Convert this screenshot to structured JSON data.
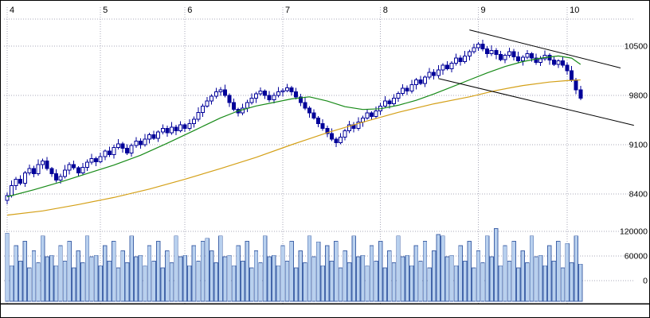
{
  "chart_data": {
    "type": "candlestick",
    "title": "",
    "x_axis": {
      "labels": [
        "4",
        "5",
        "6",
        "7",
        "8",
        "9",
        "10"
      ],
      "month_start_days": [
        0,
        21,
        40,
        62,
        84,
        106,
        126
      ],
      "total_days": 130
    },
    "price_axis": {
      "side": "right",
      "ticks": [
        10500,
        9800,
        9100,
        8400
      ]
    },
    "volume_axis": {
      "side": "right",
      "ticks": [
        120000,
        60000,
        0
      ]
    },
    "candles": [
      [
        8310,
        8420,
        8255,
        8380,
        92000
      ],
      [
        8380,
        8590,
        8350,
        8520,
        48000
      ],
      [
        8520,
        8640,
        8455,
        8610,
        75000
      ],
      [
        8610,
        8665,
        8525,
        8550,
        54000
      ],
      [
        8550,
        8725,
        8500,
        8700,
        81000
      ],
      [
        8700,
        8820,
        8665,
        8760,
        45000
      ],
      [
        8760,
        8800,
        8635,
        8690,
        68000
      ],
      [
        8690,
        8890,
        8660,
        8820,
        52000
      ],
      [
        8820,
        8900,
        8755,
        8870,
        88000
      ],
      [
        8870,
        8925,
        8735,
        8760,
        60000
      ],
      [
        8760,
        8785,
        8640,
        8690,
        62000
      ],
      [
        8690,
        8750,
        8565,
        8600,
        48000
      ],
      [
        8600,
        8690,
        8545,
        8650,
        75000
      ],
      [
        8650,
        8810,
        8620,
        8740,
        54000
      ],
      [
        8740,
        8850,
        8675,
        8820,
        81000
      ],
      [
        8820,
        8875,
        8745,
        8770,
        45000
      ],
      [
        8770,
        8795,
        8650,
        8700,
        68000
      ],
      [
        8700,
        8840,
        8665,
        8780,
        52000
      ],
      [
        8780,
        8890,
        8725,
        8850,
        88000
      ],
      [
        8850,
        8970,
        8820,
        8900,
        60000
      ],
      [
        8900,
        8930,
        8795,
        8860,
        62000
      ],
      [
        8860,
        8985,
        8835,
        8930,
        48000
      ],
      [
        8930,
        9035,
        8880,
        9010,
        75000
      ],
      [
        9010,
        9070,
        8925,
        8960,
        54000
      ],
      [
        8960,
        9100,
        8905,
        9060,
        81000
      ],
      [
        9060,
        9180,
        9030,
        9110,
        45000
      ],
      [
        9110,
        9140,
        8985,
        9050,
        68000
      ],
      [
        9050,
        9105,
        8955,
        8980,
        52000
      ],
      [
        8980,
        9115,
        8930,
        9090,
        88000
      ],
      [
        9090,
        9210,
        9055,
        9150,
        60000
      ],
      [
        9150,
        9190,
        9045,
        9100,
        62000
      ],
      [
        9100,
        9250,
        9070,
        9180,
        48000
      ],
      [
        9180,
        9270,
        9115,
        9240,
        75000
      ],
      [
        9240,
        9295,
        9165,
        9190,
        54000
      ],
      [
        9190,
        9305,
        9140,
        9280,
        81000
      ],
      [
        9280,
        9390,
        9245,
        9330,
        45000
      ],
      [
        9330,
        9370,
        9215,
        9270,
        68000
      ],
      [
        9270,
        9420,
        9240,
        9350,
        52000
      ],
      [
        9350,
        9380,
        9235,
        9300,
        88000
      ],
      [
        9300,
        9435,
        9275,
        9380,
        60000
      ],
      [
        9380,
        9405,
        9280,
        9330,
        62000
      ],
      [
        9330,
        9460,
        9295,
        9400,
        48000
      ],
      [
        9400,
        9500,
        9345,
        9460,
        75000
      ],
      [
        9460,
        9630,
        9430,
        9560,
        54000
      ],
      [
        9560,
        9680,
        9495,
        9650,
        81000
      ],
      [
        9650,
        9775,
        9625,
        9720,
        85000
      ],
      [
        9720,
        9815,
        9670,
        9790,
        68000
      ],
      [
        9790,
        9910,
        9755,
        9850,
        52000
      ],
      [
        9850,
        9920,
        9795,
        9880,
        88000
      ],
      [
        9880,
        9950,
        9770,
        9800,
        60000
      ],
      [
        9800,
        9830,
        9635,
        9700,
        62000
      ],
      [
        9700,
        9755,
        9575,
        9600,
        48000
      ],
      [
        9600,
        9625,
        9500,
        9550,
        75000
      ],
      [
        9550,
        9680,
        9515,
        9620,
        54000
      ],
      [
        9620,
        9740,
        9565,
        9700,
        81000
      ],
      [
        9700,
        9830,
        9670,
        9760,
        45000
      ],
      [
        9760,
        9850,
        9695,
        9820,
        68000
      ],
      [
        9820,
        9915,
        9795,
        9860,
        52000
      ],
      [
        9860,
        9885,
        9750,
        9800,
        88000
      ],
      [
        9800,
        9860,
        9705,
        9740,
        60000
      ],
      [
        9740,
        9840,
        9685,
        9800,
        62000
      ],
      [
        9800,
        9920,
        9770,
        9850,
        48000
      ],
      [
        9850,
        9900,
        9785,
        9870,
        75000
      ],
      [
        9870,
        9965,
        9845,
        9910,
        54000
      ],
      [
        9910,
        9935,
        9800,
        9850,
        81000
      ],
      [
        9850,
        9910,
        9745,
        9780,
        45000
      ],
      [
        9780,
        9820,
        9645,
        9700,
        68000
      ],
      [
        9700,
        9770,
        9590,
        9620,
        52000
      ],
      [
        9620,
        9650,
        9485,
        9550,
        88000
      ],
      [
        9550,
        9605,
        9455,
        9480,
        60000
      ],
      [
        9480,
        9505,
        9350,
        9400,
        80000
      ],
      [
        9400,
        9460,
        9295,
        9330,
        48000
      ],
      [
        9330,
        9370,
        9205,
        9260,
        75000
      ],
      [
        9260,
        9330,
        9150,
        9180,
        54000
      ],
      [
        9180,
        9210,
        9065,
        9130,
        81000
      ],
      [
        9130,
        9265,
        9105,
        9210,
        45000
      ],
      [
        9210,
        9325,
        9160,
        9300,
        68000
      ],
      [
        9300,
        9440,
        9265,
        9380,
        52000
      ],
      [
        9380,
        9420,
        9275,
        9330,
        88000
      ],
      [
        9330,
        9490,
        9300,
        9420,
        60000
      ],
      [
        9420,
        9510,
        9355,
        9480,
        62000
      ],
      [
        9480,
        9605,
        9455,
        9550,
        48000
      ],
      [
        9550,
        9575,
        9450,
        9500,
        75000
      ],
      [
        9500,
        9640,
        9465,
        9580,
        54000
      ],
      [
        9580,
        9690,
        9525,
        9650,
        81000
      ],
      [
        9650,
        9790,
        9620,
        9720,
        45000
      ],
      [
        9720,
        9750,
        9615,
        9680,
        68000
      ],
      [
        9680,
        9815,
        9655,
        9760,
        52000
      ],
      [
        9760,
        9855,
        9710,
        9830,
        88000
      ],
      [
        9830,
        9960,
        9795,
        9900,
        60000
      ],
      [
        9900,
        9940,
        9805,
        9860,
        62000
      ],
      [
        9860,
        10020,
        9830,
        9950,
        48000
      ],
      [
        9950,
        10050,
        9885,
        10020,
        75000
      ],
      [
        10020,
        10075,
        9945,
        9970,
        54000
      ],
      [
        9970,
        10085,
        9920,
        10060,
        81000
      ],
      [
        10060,
        10190,
        10025,
        10130,
        45000
      ],
      [
        10130,
        10170,
        10025,
        10080,
        68000
      ],
      [
        10080,
        10230,
        10050,
        10160,
        90000
      ],
      [
        10160,
        10260,
        10095,
        10230,
        88000
      ],
      [
        10230,
        10285,
        10155,
        10180,
        60000
      ],
      [
        10180,
        10285,
        10130,
        10260,
        62000
      ],
      [
        10260,
        10390,
        10225,
        10330,
        48000
      ],
      [
        10330,
        10370,
        10225,
        10280,
        75000
      ],
      [
        10280,
        10430,
        10250,
        10360,
        54000
      ],
      [
        10360,
        10450,
        10295,
        10420,
        81000
      ],
      [
        10420,
        10535,
        10395,
        10480,
        45000
      ],
      [
        10480,
        10555,
        10430,
        10530,
        68000
      ],
      [
        10530,
        10590,
        10425,
        10460,
        52000
      ],
      [
        10460,
        10500,
        10335,
        10390,
        88000
      ],
      [
        10390,
        10510,
        10360,
        10440,
        60000
      ],
      [
        10440,
        10470,
        10315,
        10380,
        98000
      ],
      [
        10380,
        10435,
        10285,
        10310,
        48000
      ],
      [
        10310,
        10395,
        10260,
        10370,
        75000
      ],
      [
        10370,
        10480,
        10335,
        10420,
        54000
      ],
      [
        10420,
        10460,
        10295,
        10350,
        81000
      ],
      [
        10350,
        10420,
        10260,
        10290,
        45000
      ],
      [
        10290,
        10370,
        10225,
        10340,
        68000
      ],
      [
        10340,
        10445,
        10315,
        10390,
        52000
      ],
      [
        10390,
        10415,
        10280,
        10330,
        88000
      ],
      [
        10330,
        10390,
        10235,
        10270,
        60000
      ],
      [
        10270,
        10360,
        10215,
        10320,
        62000
      ],
      [
        10320,
        10440,
        10290,
        10370,
        48000
      ],
      [
        10370,
        10400,
        10235,
        10300,
        75000
      ],
      [
        10300,
        10355,
        10215,
        10240,
        54000
      ],
      [
        10240,
        10315,
        10190,
        10290,
        81000
      ],
      [
        10290,
        10350,
        10195,
        10230,
        45000
      ],
      [
        10230,
        10270,
        10095,
        10150,
        78000
      ],
      [
        10150,
        10220,
        9990,
        10020,
        52000
      ],
      [
        10020,
        10050,
        9815,
        9880,
        88000
      ],
      [
        9880,
        9935,
        9735,
        9760,
        50000
      ]
    ],
    "moving_averages": [
      {
        "name": "ma-short",
        "color": "#178a17",
        "points": [
          [
            0,
            8360
          ],
          [
            6,
            8460
          ],
          [
            12,
            8570
          ],
          [
            18,
            8690
          ],
          [
            24,
            8810
          ],
          [
            30,
            8950
          ],
          [
            36,
            9120
          ],
          [
            42,
            9300
          ],
          [
            48,
            9480
          ],
          [
            52,
            9580
          ],
          [
            56,
            9650
          ],
          [
            60,
            9700
          ],
          [
            64,
            9750
          ],
          [
            68,
            9780
          ],
          [
            72,
            9720
          ],
          [
            76,
            9640
          ],
          [
            80,
            9600
          ],
          [
            84,
            9610
          ],
          [
            88,
            9660
          ],
          [
            92,
            9730
          ],
          [
            96,
            9820
          ],
          [
            100,
            9920
          ],
          [
            104,
            10020
          ],
          [
            108,
            10120
          ],
          [
            112,
            10210
          ],
          [
            116,
            10280
          ],
          [
            120,
            10330
          ],
          [
            124,
            10360
          ],
          [
            127,
            10330
          ],
          [
            129,
            10240
          ]
        ]
      },
      {
        "name": "ma-long",
        "color": "#d4a017",
        "points": [
          [
            0,
            8100
          ],
          [
            8,
            8160
          ],
          [
            16,
            8250
          ],
          [
            24,
            8350
          ],
          [
            32,
            8470
          ],
          [
            40,
            8610
          ],
          [
            48,
            8760
          ],
          [
            56,
            8920
          ],
          [
            64,
            9100
          ],
          [
            72,
            9270
          ],
          [
            80,
            9420
          ],
          [
            88,
            9560
          ],
          [
            96,
            9680
          ],
          [
            104,
            9780
          ],
          [
            110,
            9870
          ],
          [
            116,
            9940
          ],
          [
            122,
            9990
          ],
          [
            126,
            10010
          ],
          [
            129,
            10020
          ]
        ]
      }
    ],
    "trendlines": [
      {
        "name": "upper",
        "points": [
          [
            104,
            10730
          ],
          [
            138,
            10190
          ]
        ]
      },
      {
        "name": "lower",
        "points": [
          [
            97,
            10040
          ],
          [
            141,
            9375
          ]
        ]
      }
    ],
    "colors": {
      "background": "#ffffff",
      "candle_up_fill": "#ffffff",
      "candle_down_fill": "#000099",
      "candle_stroke": "#000099",
      "volume_fill": "#b8d0ee",
      "volume_stroke": "#4466aa",
      "grid": "#a8a8b8",
      "trendline": "#000000",
      "axis_text": "#000000"
    }
  }
}
